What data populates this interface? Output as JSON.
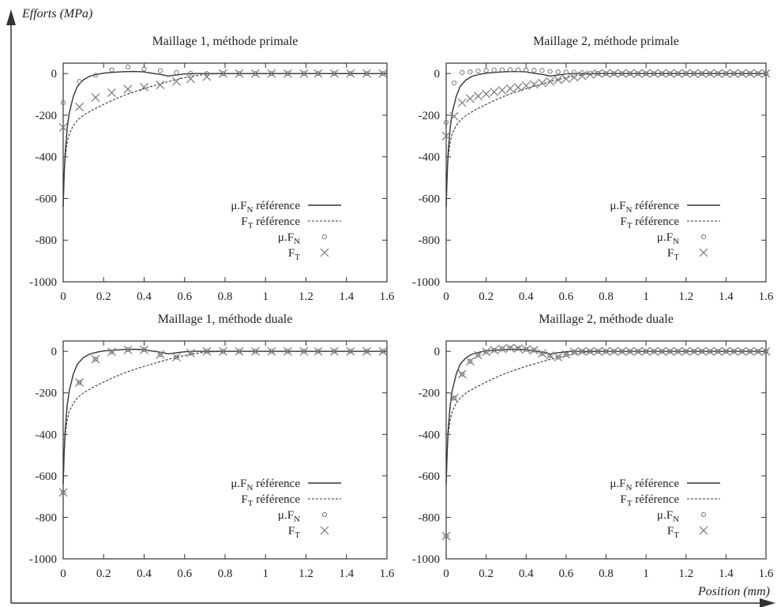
{
  "figure": {
    "ylabel": "Efforts (MPa)",
    "xlabel": "Position (mm)"
  },
  "legend": {
    "entries": [
      {
        "prefix": "μ.F",
        "sub": "N",
        "suffix": " référence",
        "style": "solid"
      },
      {
        "prefix": "F",
        "sub": "T",
        "suffix": " référence",
        "style": "dashed"
      },
      {
        "prefix": "μ.F",
        "sub": "N",
        "suffix": "",
        "style": "circle"
      },
      {
        "prefix": "F",
        "sub": "T",
        "suffix": "",
        "style": "cross"
      }
    ]
  },
  "colors": {
    "line": "#333333",
    "marker": "#7a7a7a",
    "frame": "#333333"
  },
  "chart_data": [
    {
      "type": "line",
      "title": "Maillage 1, méthode primale",
      "xlim": [
        0,
        1.6
      ],
      "ylim": [
        -1000,
        50
      ],
      "xticks": [
        "0",
        "0.2",
        "0.4",
        "0.6",
        "0.8",
        "1",
        "1.2",
        "1.4",
        "1.6"
      ],
      "yticks": [
        "0",
        "-200",
        "-400",
        "-600",
        "-800",
        "-1000"
      ],
      "ref_muFN": {
        "x": [
          0,
          0.005,
          0.01,
          0.02,
          0.03,
          0.05,
          0.07,
          0.1,
          0.13,
          0.17,
          0.2,
          0.25,
          0.3,
          0.35,
          0.4,
          0.42,
          0.45,
          0.48,
          0.5,
          0.52,
          0.55,
          0.6,
          0.63,
          1.6
        ],
        "y": [
          -640,
          -480,
          -380,
          -260,
          -190,
          -110,
          -62,
          -30,
          -13,
          -3,
          2,
          6,
          9,
          10,
          8,
          4,
          0,
          -4,
          -8,
          -12,
          -8,
          -2,
          0,
          0
        ]
      },
      "ref_FT": {
        "x": [
          0,
          0.005,
          0.01,
          0.02,
          0.03,
          0.05,
          0.07,
          0.1,
          0.15,
          0.2,
          0.25,
          0.3,
          0.35,
          0.4,
          0.45,
          0.5,
          0.55,
          0.6,
          0.65,
          0.7,
          0.78,
          1.6
        ],
        "y": [
          -640,
          -480,
          -400,
          -330,
          -290,
          -250,
          -225,
          -200,
          -172,
          -148,
          -125,
          -105,
          -88,
          -72,
          -58,
          -44,
          -31,
          -20,
          -11,
          -4,
          0,
          0
        ]
      },
      "pts_muFN": {
        "x": [
          0,
          0.08,
          0.16,
          0.24,
          0.32,
          0.4,
          0.48,
          0.56,
          0.63,
          0.71,
          0.79,
          0.87,
          0.95,
          1.03,
          1.11,
          1.19,
          1.26,
          1.34,
          1.42,
          1.5,
          1.58
        ],
        "y": [
          -140,
          -38,
          -8,
          18,
          32,
          22,
          14,
          5,
          2,
          0,
          0,
          0,
          0,
          0,
          0,
          0,
          0,
          0,
          0,
          0,
          0
        ]
      },
      "pts_FT": {
        "x": [
          0,
          0.08,
          0.16,
          0.24,
          0.32,
          0.4,
          0.48,
          0.56,
          0.63,
          0.71,
          0.79,
          0.87,
          0.95,
          1.03,
          1.11,
          1.19,
          1.26,
          1.34,
          1.42,
          1.5,
          1.58
        ],
        "y": [
          -258,
          -160,
          -115,
          -92,
          -75,
          -65,
          -55,
          -38,
          -25,
          -15,
          0,
          0,
          0,
          0,
          0,
          0,
          0,
          0,
          0,
          0,
          0
        ]
      }
    },
    {
      "type": "line",
      "title": "Maillage 2, méthode primale",
      "xlim": [
        0,
        1.6
      ],
      "ylim": [
        -1000,
        50
      ],
      "xticks": [
        "0",
        "0.2",
        "0.4",
        "0.6",
        "0.8",
        "1",
        "1.2",
        "1.4",
        "1.6"
      ],
      "yticks": [
        "0",
        "-200",
        "-400",
        "-600",
        "-800",
        "-1000"
      ],
      "ref_muFN": {
        "x": [
          0,
          0.005,
          0.01,
          0.02,
          0.03,
          0.05,
          0.07,
          0.1,
          0.13,
          0.17,
          0.2,
          0.25,
          0.3,
          0.35,
          0.4,
          0.42,
          0.45,
          0.48,
          0.5,
          0.52,
          0.55,
          0.6,
          0.63,
          1.6
        ],
        "y": [
          -640,
          -480,
          -380,
          -260,
          -190,
          -110,
          -62,
          -30,
          -13,
          -3,
          2,
          6,
          9,
          10,
          8,
          4,
          0,
          -4,
          -8,
          -12,
          -8,
          -2,
          0,
          0
        ]
      },
      "ref_FT": {
        "x": [
          0,
          0.005,
          0.01,
          0.02,
          0.03,
          0.05,
          0.07,
          0.1,
          0.15,
          0.2,
          0.25,
          0.3,
          0.35,
          0.4,
          0.45,
          0.5,
          0.55,
          0.6,
          0.65,
          0.7,
          0.78,
          1.6
        ],
        "y": [
          -640,
          -480,
          -400,
          -330,
          -290,
          -250,
          -225,
          -200,
          -172,
          -148,
          -125,
          -105,
          -88,
          -72,
          -58,
          -44,
          -31,
          -20,
          -11,
          -4,
          0,
          0
        ]
      },
      "pts_muFN": {
        "x": [
          0,
          0.04,
          0.08,
          0.12,
          0.16,
          0.2,
          0.24,
          0.28,
          0.32,
          0.36,
          0.4,
          0.44,
          0.48,
          0.52,
          0.56,
          0.6,
          0.64,
          0.68,
          0.72,
          0.76,
          0.8,
          0.84,
          0.88,
          0.92,
          0.96,
          1.0,
          1.04,
          1.08,
          1.12,
          1.16,
          1.2,
          1.24,
          1.28,
          1.32,
          1.36,
          1.4,
          1.44,
          1.48,
          1.52,
          1.56,
          1.6
        ],
        "y": [
          -235,
          -45,
          5,
          8,
          12,
          15,
          17,
          18,
          19,
          18,
          17,
          16,
          15,
          10,
          8,
          7,
          6,
          4,
          2,
          1,
          0,
          0,
          0,
          0,
          0,
          0,
          0,
          0,
          0,
          0,
          0,
          0,
          0,
          0,
          0,
          0,
          0,
          0,
          0,
          0,
          0
        ]
      },
      "pts_FT": {
        "x": [
          0,
          0.04,
          0.08,
          0.12,
          0.16,
          0.2,
          0.24,
          0.28,
          0.32,
          0.36,
          0.4,
          0.44,
          0.48,
          0.52,
          0.56,
          0.6,
          0.64,
          0.68,
          0.72,
          0.76,
          0.8,
          0.84,
          0.88,
          0.92,
          0.96,
          1.0,
          1.04,
          1.08,
          1.12,
          1.16,
          1.2,
          1.24,
          1.28,
          1.32,
          1.36,
          1.4,
          1.44,
          1.48,
          1.52,
          1.56,
          1.6
        ],
        "y": [
          -300,
          -205,
          -140,
          -120,
          -108,
          -98,
          -88,
          -80,
          -72,
          -66,
          -58,
          -52,
          -45,
          -38,
          -30,
          -25,
          -18,
          -12,
          -5,
          0,
          0,
          0,
          0,
          0,
          0,
          0,
          0,
          0,
          0,
          0,
          0,
          0,
          0,
          0,
          0,
          0,
          0,
          0,
          0,
          0,
          0
        ]
      }
    },
    {
      "type": "line",
      "title": "Maillage 1, méthode duale",
      "xlim": [
        0,
        1.6
      ],
      "ylim": [
        -1000,
        50
      ],
      "xticks": [
        "0",
        "0.2",
        "0.4",
        "0.6",
        "0.8",
        "1",
        "1.2",
        "1.4",
        "1.6"
      ],
      "yticks": [
        "0",
        "-200",
        "-400",
        "-600",
        "-800",
        "-1000"
      ],
      "ref_muFN": {
        "x": [
          0,
          0.005,
          0.01,
          0.02,
          0.03,
          0.05,
          0.07,
          0.1,
          0.13,
          0.17,
          0.2,
          0.25,
          0.3,
          0.35,
          0.4,
          0.42,
          0.45,
          0.48,
          0.5,
          0.52,
          0.55,
          0.6,
          0.63,
          1.6
        ],
        "y": [
          -640,
          -480,
          -380,
          -260,
          -190,
          -110,
          -62,
          -30,
          -13,
          -3,
          2,
          6,
          9,
          10,
          8,
          4,
          0,
          -4,
          -8,
          -12,
          -8,
          -2,
          0,
          0
        ]
      },
      "ref_FT": {
        "x": [
          0,
          0.005,
          0.01,
          0.02,
          0.03,
          0.05,
          0.07,
          0.1,
          0.15,
          0.2,
          0.25,
          0.3,
          0.35,
          0.4,
          0.45,
          0.5,
          0.55,
          0.6,
          0.65,
          0.7,
          0.78,
          1.6
        ],
        "y": [
          -640,
          -480,
          -400,
          -330,
          -290,
          -250,
          -225,
          -200,
          -172,
          -148,
          -125,
          -105,
          -88,
          -72,
          -58,
          -44,
          -31,
          -20,
          -11,
          -4,
          0,
          0
        ]
      },
      "pts_muFN": {
        "x": [
          0,
          0.08,
          0.16,
          0.24,
          0.32,
          0.4,
          0.48,
          0.56,
          0.63,
          0.71,
          0.79,
          0.87,
          0.95,
          1.03,
          1.11,
          1.19,
          1.26,
          1.34,
          1.42,
          1.5,
          1.58
        ],
        "y": [
          -680,
          -150,
          -38,
          -2,
          8,
          8,
          -15,
          -28,
          -8,
          0,
          0,
          0,
          0,
          0,
          0,
          0,
          0,
          0,
          0,
          0,
          0
        ]
      },
      "pts_FT": {
        "x": [
          0,
          0.08,
          0.16,
          0.24,
          0.32,
          0.4,
          0.48,
          0.56,
          0.63,
          0.71,
          0.79,
          0.87,
          0.95,
          1.03,
          1.11,
          1.19,
          1.26,
          1.34,
          1.42,
          1.5,
          1.58
        ],
        "y": [
          -680,
          -150,
          -38,
          -2,
          8,
          8,
          -15,
          -28,
          -8,
          0,
          0,
          0,
          0,
          0,
          0,
          0,
          0,
          0,
          0,
          0,
          0
        ]
      }
    },
    {
      "type": "line",
      "title": "Maillage 2, méthode duale",
      "xlim": [
        0,
        1.6
      ],
      "ylim": [
        -1000,
        50
      ],
      "xticks": [
        "0",
        "0.2",
        "0.4",
        "0.6",
        "0.8",
        "1",
        "1.2",
        "1.4",
        "1.6"
      ],
      "yticks": [
        "0",
        "-200",
        "-400",
        "-600",
        "-800",
        "-1000"
      ],
      "ref_muFN": {
        "x": [
          0,
          0.005,
          0.01,
          0.02,
          0.03,
          0.05,
          0.07,
          0.1,
          0.13,
          0.17,
          0.2,
          0.25,
          0.3,
          0.35,
          0.4,
          0.42,
          0.45,
          0.48,
          0.5,
          0.52,
          0.55,
          0.6,
          0.63,
          1.6
        ],
        "y": [
          -640,
          -480,
          -380,
          -260,
          -190,
          -110,
          -62,
          -30,
          -13,
          -3,
          2,
          6,
          9,
          10,
          8,
          4,
          0,
          -4,
          -8,
          -12,
          -8,
          -2,
          0,
          0
        ]
      },
      "ref_FT": {
        "x": [
          0,
          0.005,
          0.01,
          0.02,
          0.03,
          0.05,
          0.07,
          0.1,
          0.15,
          0.2,
          0.25,
          0.3,
          0.35,
          0.4,
          0.45,
          0.5,
          0.55,
          0.6,
          0.65,
          0.7,
          0.78,
          1.6
        ],
        "y": [
          -640,
          -480,
          -400,
          -330,
          -290,
          -250,
          -225,
          -200,
          -172,
          -148,
          -125,
          -105,
          -88,
          -72,
          -58,
          -44,
          -31,
          -20,
          -11,
          -4,
          0,
          0
        ]
      },
      "pts_muFN": {
        "x": [
          0,
          0.04,
          0.08,
          0.12,
          0.16,
          0.2,
          0.24,
          0.28,
          0.32,
          0.36,
          0.4,
          0.44,
          0.48,
          0.52,
          0.56,
          0.6,
          0.64,
          0.68,
          0.72,
          0.76,
          0.8,
          0.84,
          0.88,
          0.92,
          0.96,
          1.0,
          1.04,
          1.08,
          1.12,
          1.16,
          1.2,
          1.24,
          1.28,
          1.32,
          1.36,
          1.4,
          1.44,
          1.48,
          1.52,
          1.56,
          1.6
        ],
        "y": [
          -890,
          -225,
          -110,
          -48,
          -18,
          -2,
          6,
          12,
          16,
          14,
          10,
          6,
          -10,
          -20,
          -28,
          -15,
          -2,
          0,
          0,
          0,
          0,
          0,
          0,
          0,
          0,
          0,
          0,
          0,
          0,
          0,
          0,
          0,
          0,
          0,
          0,
          0,
          0,
          0,
          0,
          0,
          0
        ]
      },
      "pts_FT": {
        "x": [
          0,
          0.04,
          0.08,
          0.12,
          0.16,
          0.2,
          0.24,
          0.28,
          0.32,
          0.36,
          0.4,
          0.44,
          0.48,
          0.52,
          0.56,
          0.6,
          0.64,
          0.68,
          0.72,
          0.76,
          0.8,
          0.84,
          0.88,
          0.92,
          0.96,
          1.0,
          1.04,
          1.08,
          1.12,
          1.16,
          1.2,
          1.24,
          1.28,
          1.32,
          1.36,
          1.4,
          1.44,
          1.48,
          1.52,
          1.56,
          1.6
        ],
        "y": [
          -890,
          -225,
          -110,
          -48,
          -18,
          -2,
          6,
          12,
          16,
          14,
          10,
          6,
          -10,
          -20,
          -28,
          -15,
          -2,
          0,
          0,
          0,
          0,
          0,
          0,
          0,
          0,
          0,
          0,
          0,
          0,
          0,
          0,
          0,
          0,
          0,
          0,
          0,
          0,
          0,
          0,
          0,
          0
        ]
      }
    }
  ]
}
